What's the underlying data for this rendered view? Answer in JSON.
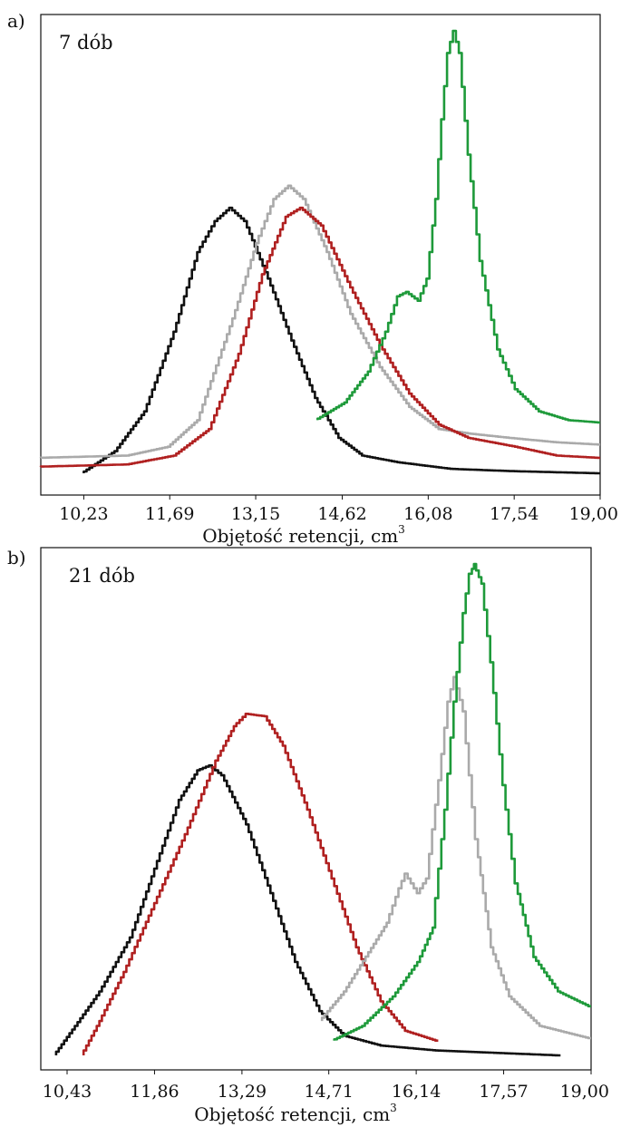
{
  "chart_data": [
    {
      "panel_label": "a)",
      "type": "line",
      "annotation": "7 dób",
      "title": "",
      "xlabel": "Objętość retencji, cm",
      "xlabel_superscript": "3",
      "ylabel": "",
      "xtick_labels": [
        "10,23",
        "11,69",
        "13,15",
        "14,62",
        "16,08",
        "17,54",
        "19,00"
      ],
      "xlim": [
        9.5,
        19.0
      ],
      "ylim": [
        0,
        1.0
      ],
      "grid": false,
      "legend": "none",
      "series": [
        {
          "color": "#111111",
          "points": [
            [
              10.23,
              0.0
            ],
            [
              10.8,
              0.05
            ],
            [
              11.3,
              0.14
            ],
            [
              11.8,
              0.32
            ],
            [
              12.2,
              0.5
            ],
            [
              12.5,
              0.57
            ],
            [
              12.75,
              0.6
            ],
            [
              13.0,
              0.57
            ],
            [
              13.4,
              0.44
            ],
            [
              13.8,
              0.3
            ],
            [
              14.2,
              0.17
            ],
            [
              14.6,
              0.08
            ],
            [
              15.0,
              0.04
            ],
            [
              15.6,
              0.025
            ],
            [
              16.5,
              0.01
            ],
            [
              17.5,
              0.005
            ],
            [
              19.0,
              0.0
            ]
          ]
        },
        {
          "color": "#aaaaaa",
          "points": [
            [
              9.5,
              0.035
            ],
            [
              11.0,
              0.04
            ],
            [
              11.7,
              0.06
            ],
            [
              12.2,
              0.12
            ],
            [
              12.8,
              0.35
            ],
            [
              13.2,
              0.52
            ],
            [
              13.5,
              0.62
            ],
            [
              13.75,
              0.65
            ],
            [
              14.0,
              0.62
            ],
            [
              14.4,
              0.5
            ],
            [
              14.8,
              0.36
            ],
            [
              15.3,
              0.24
            ],
            [
              15.8,
              0.15
            ],
            [
              16.3,
              0.1
            ],
            [
              16.8,
              0.09
            ],
            [
              17.5,
              0.08
            ],
            [
              18.3,
              0.07
            ],
            [
              19.0,
              0.065
            ]
          ]
        },
        {
          "color": "#b02020",
          "points": [
            [
              9.5,
              0.015
            ],
            [
              11.0,
              0.02
            ],
            [
              11.8,
              0.04
            ],
            [
              12.4,
              0.1
            ],
            [
              12.9,
              0.27
            ],
            [
              13.3,
              0.45
            ],
            [
              13.7,
              0.58
            ],
            [
              13.95,
              0.6
            ],
            [
              14.3,
              0.56
            ],
            [
              14.8,
              0.42
            ],
            [
              15.3,
              0.29
            ],
            [
              15.8,
              0.18
            ],
            [
              16.3,
              0.11
            ],
            [
              16.8,
              0.08
            ],
            [
              17.6,
              0.06
            ],
            [
              18.3,
              0.04
            ],
            [
              19.0,
              0.035
            ]
          ]
        },
        {
          "color": "#1e9a3a",
          "points": [
            [
              14.2,
              0.12
            ],
            [
              14.7,
              0.16
            ],
            [
              15.1,
              0.23
            ],
            [
              15.4,
              0.32
            ],
            [
              15.6,
              0.4
            ],
            [
              15.75,
              0.41
            ],
            [
              15.95,
              0.39
            ],
            [
              16.1,
              0.44
            ],
            [
              16.25,
              0.62
            ],
            [
              16.35,
              0.8
            ],
            [
              16.45,
              0.95
            ],
            [
              16.55,
              1.0
            ],
            [
              16.65,
              0.95
            ],
            [
              16.8,
              0.72
            ],
            [
              17.0,
              0.48
            ],
            [
              17.3,
              0.28
            ],
            [
              17.6,
              0.19
            ],
            [
              18.0,
              0.14
            ],
            [
              18.5,
              0.12
            ],
            [
              19.0,
              0.115
            ]
          ]
        }
      ]
    },
    {
      "panel_label": "b)",
      "type": "line",
      "annotation": "21 dób",
      "title": "",
      "xlabel": "Objętość retencji, cm",
      "xlabel_superscript": "3",
      "ylabel": "",
      "xtick_labels": [
        "10,43",
        "11,86",
        "13,29",
        "14,71",
        "16,14",
        "17,57",
        "19,00"
      ],
      "xlim": [
        10.0,
        19.0
      ],
      "ylim": [
        0,
        1.0
      ],
      "grid": false,
      "legend": "none",
      "series": [
        {
          "color": "#111111",
          "points": [
            [
              10.25,
              0.0
            ],
            [
              10.6,
              0.06
            ],
            [
              11.0,
              0.13
            ],
            [
              11.5,
              0.24
            ],
            [
              11.9,
              0.38
            ],
            [
              12.3,
              0.52
            ],
            [
              12.6,
              0.58
            ],
            [
              12.8,
              0.59
            ],
            [
              13.0,
              0.57
            ],
            [
              13.4,
              0.47
            ],
            [
              13.8,
              0.33
            ],
            [
              14.2,
              0.19
            ],
            [
              14.6,
              0.09
            ],
            [
              15.0,
              0.04
            ],
            [
              15.6,
              0.02
            ],
            [
              16.5,
              0.01
            ],
            [
              17.5,
              0.005
            ],
            [
              18.5,
              0.0
            ]
          ]
        },
        {
          "color": "#b02020",
          "points": [
            [
              10.7,
              0.0
            ],
            [
              11.0,
              0.07
            ],
            [
              11.4,
              0.17
            ],
            [
              11.9,
              0.31
            ],
            [
              12.4,
              0.45
            ],
            [
              12.9,
              0.6
            ],
            [
              13.2,
              0.67
            ],
            [
              13.4,
              0.695
            ],
            [
              13.7,
              0.69
            ],
            [
              14.0,
              0.63
            ],
            [
              14.4,
              0.5
            ],
            [
              14.8,
              0.36
            ],
            [
              15.2,
              0.22
            ],
            [
              15.6,
              0.11
            ],
            [
              16.0,
              0.05
            ],
            [
              16.5,
              0.03
            ]
          ]
        },
        {
          "color": "#aaaaaa",
          "points": [
            [
              14.6,
              0.07
            ],
            [
              15.0,
              0.13
            ],
            [
              15.4,
              0.21
            ],
            [
              15.7,
              0.27
            ],
            [
              15.9,
              0.34
            ],
            [
              16.0,
              0.37
            ],
            [
              16.2,
              0.33
            ],
            [
              16.35,
              0.36
            ],
            [
              16.55,
              0.56
            ],
            [
              16.7,
              0.72
            ],
            [
              16.8,
              0.77
            ],
            [
              16.95,
              0.7
            ],
            [
              17.15,
              0.44
            ],
            [
              17.4,
              0.22
            ],
            [
              17.7,
              0.12
            ],
            [
              18.2,
              0.06
            ],
            [
              19.0,
              0.035
            ]
          ]
        },
        {
          "color": "#1e9a3a",
          "points": [
            [
              14.8,
              0.03
            ],
            [
              15.3,
              0.06
            ],
            [
              15.8,
              0.12
            ],
            [
              16.2,
              0.19
            ],
            [
              16.45,
              0.26
            ],
            [
              16.65,
              0.5
            ],
            [
              16.8,
              0.72
            ],
            [
              16.95,
              0.9
            ],
            [
              17.05,
              0.98
            ],
            [
              17.12,
              1.0
            ],
            [
              17.25,
              0.96
            ],
            [
              17.4,
              0.8
            ],
            [
              17.6,
              0.55
            ],
            [
              17.8,
              0.35
            ],
            [
              18.1,
              0.2
            ],
            [
              18.5,
              0.13
            ],
            [
              19.0,
              0.1
            ]
          ]
        }
      ]
    }
  ]
}
